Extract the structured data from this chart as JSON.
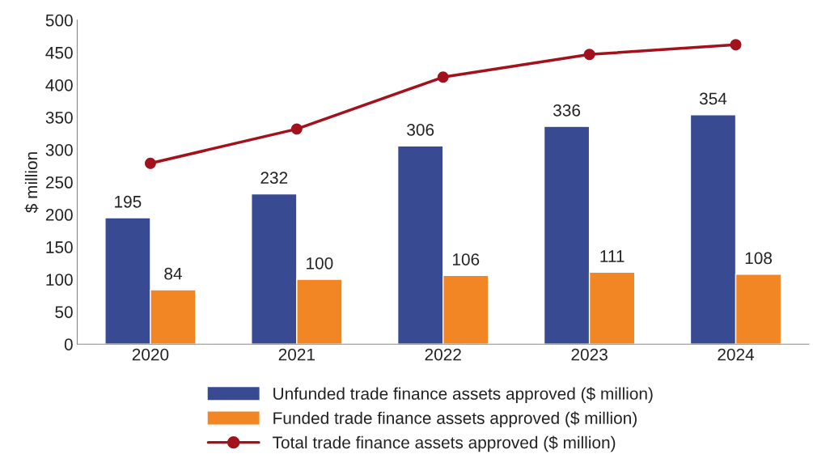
{
  "chart_data": {
    "type": "bar",
    "ylabel": "$ million",
    "categories": [
      "2020",
      "2021",
      "2022",
      "2023",
      "2024"
    ],
    "series": [
      {
        "name": "Unfunded trade finance assets approved ($ million)",
        "color": "#374a92",
        "values": [
          195,
          232,
          306,
          336,
          354
        ],
        "value_labels": [
          "195",
          "232",
          "306",
          "336",
          "354"
        ]
      },
      {
        "name": "Funded trade finance assets approved ($ million)",
        "color": "#f28625",
        "values": [
          84,
          100,
          106,
          111,
          108
        ],
        "value_labels": [
          "84",
          "100",
          "106",
          "111",
          "108"
        ]
      },
      {
        "name": "Total trade finance assets approved ($ million)",
        "type": "line",
        "color": "#a3121c",
        "marker": "circle",
        "values": [
          279,
          332,
          412,
          447,
          462
        ]
      }
    ],
    "ylim": [
      0,
      500
    ],
    "yticks": [
      0,
      50,
      100,
      150,
      200,
      250,
      300,
      350,
      400,
      450,
      500
    ],
    "grid": false,
    "legend": "bottom"
  }
}
